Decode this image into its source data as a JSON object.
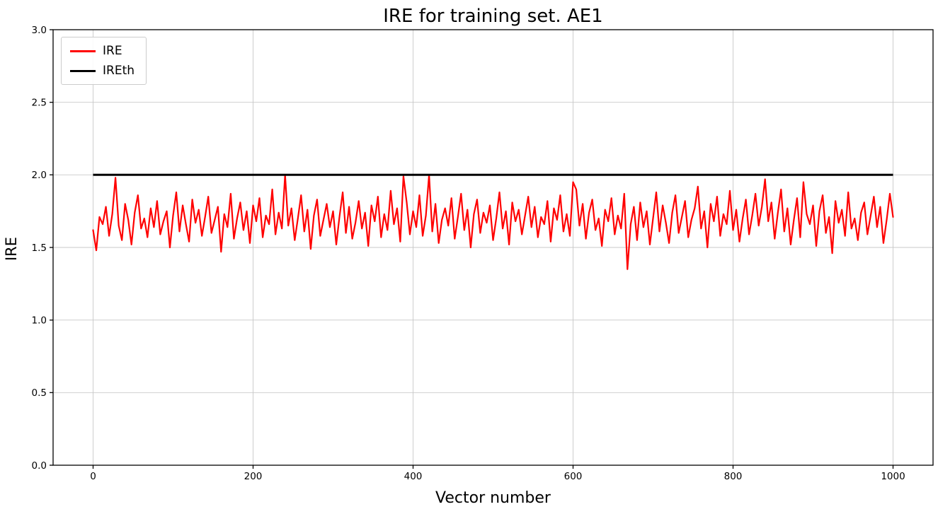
{
  "figure": {
    "background": "#ffffff",
    "axes_edge_color": "#000000",
    "grid_color": "#c8c8c8"
  },
  "chart_data": {
    "type": "line",
    "title": "IRE for training set. AE1",
    "xlabel": "Vector number",
    "ylabel": "IRE",
    "xlim": [
      -50,
      1050
    ],
    "ylim": [
      0,
      3
    ],
    "xticks": [
      "0",
      "200",
      "400",
      "600",
      "800",
      "1000"
    ],
    "yticks": [
      "0.0",
      "0.5",
      "1.0",
      "1.5",
      "2.0",
      "2.5",
      "3.0"
    ],
    "grid": true,
    "legend": {
      "position": "upper-left",
      "entries": [
        {
          "label": "IRE",
          "color": "#ff0000",
          "line_width": 3
        },
        {
          "label": "IREth",
          "color": "#000000",
          "line_width": 3
        }
      ]
    },
    "series": [
      {
        "name": "IRE",
        "color": "#ff0000",
        "type": "line",
        "line_width": 2.2,
        "x_start": 0,
        "x_step": 4,
        "values": [
          1.62,
          1.48,
          1.71,
          1.66,
          1.78,
          1.58,
          1.73,
          1.98,
          1.65,
          1.55,
          1.8,
          1.69,
          1.52,
          1.74,
          1.86,
          1.63,
          1.7,
          1.57,
          1.77,
          1.64,
          1.82,
          1.59,
          1.68,
          1.75,
          1.5,
          1.72,
          1.88,
          1.61,
          1.79,
          1.66,
          1.54,
          1.83,
          1.67,
          1.76,
          1.58,
          1.71,
          1.85,
          1.6,
          1.69,
          1.78,
          1.47,
          1.73,
          1.64,
          1.87,
          1.56,
          1.7,
          1.81,
          1.62,
          1.75,
          1.53,
          1.79,
          1.68,
          1.84,
          1.57,
          1.72,
          1.66,
          1.9,
          1.59,
          1.74,
          1.63,
          2.0,
          1.65,
          1.77,
          1.55,
          1.7,
          1.86,
          1.61,
          1.76,
          1.49,
          1.72,
          1.83,
          1.58,
          1.69,
          1.8,
          1.64,
          1.75,
          1.52,
          1.71,
          1.88,
          1.6,
          1.78,
          1.56,
          1.67,
          1.82,
          1.63,
          1.74,
          1.51,
          1.79,
          1.68,
          1.85,
          1.57,
          1.73,
          1.62,
          1.89,
          1.66,
          1.77,
          1.54,
          1.99,
          1.81,
          1.59,
          1.75,
          1.64,
          1.86,
          1.58,
          1.72,
          2.0,
          1.61,
          1.8,
          1.53,
          1.69,
          1.77,
          1.65,
          1.84,
          1.56,
          1.71,
          1.87,
          1.62,
          1.76,
          1.5,
          1.73,
          1.83,
          1.6,
          1.74,
          1.67,
          1.79,
          1.55,
          1.7,
          1.88,
          1.63,
          1.75,
          1.52,
          1.81,
          1.68,
          1.76,
          1.59,
          1.72,
          1.85,
          1.64,
          1.78,
          1.57,
          1.71,
          1.66,
          1.82,
          1.54,
          1.77,
          1.69,
          1.86,
          1.61,
          1.73,
          1.58,
          1.95,
          1.9,
          1.65,
          1.8,
          1.56,
          1.74,
          1.83,
          1.62,
          1.7,
          1.51,
          1.76,
          1.68,
          1.84,
          1.59,
          1.72,
          1.63,
          1.87,
          1.35,
          1.66,
          1.78,
          1.55,
          1.81,
          1.64,
          1.75,
          1.52,
          1.7,
          1.88,
          1.61,
          1.79,
          1.67,
          1.53,
          1.74,
          1.86,
          1.6,
          1.71,
          1.82,
          1.57,
          1.69,
          1.77,
          1.92,
          1.63,
          1.75,
          1.5,
          1.8,
          1.68,
          1.85,
          1.58,
          1.73,
          1.66,
          1.89,
          1.62,
          1.76,
          1.54,
          1.7,
          1.83,
          1.59,
          1.72,
          1.87,
          1.65,
          1.78,
          1.97,
          1.68,
          1.81,
          1.56,
          1.74,
          1.9,
          1.61,
          1.77,
          1.52,
          1.69,
          1.84,
          1.57,
          1.95,
          1.73,
          1.66,
          1.79,
          1.51,
          1.75,
          1.86,
          1.6,
          1.71,
          1.46,
          1.82,
          1.67,
          1.76,
          1.58,
          1.88,
          1.63,
          1.7,
          1.55,
          1.74,
          1.81,
          1.59,
          1.72,
          1.85,
          1.64,
          1.78,
          1.53,
          1.69,
          1.87,
          1.71
        ]
      },
      {
        "name": "IREth",
        "color": "#000000",
        "type": "hline",
        "line_width": 3,
        "y": 2.0,
        "x_range": [
          0,
          1000
        ]
      }
    ]
  }
}
